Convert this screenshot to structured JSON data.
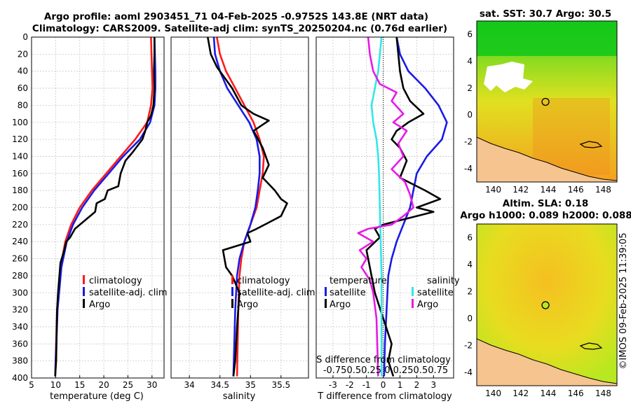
{
  "title_line1": "Argo profile: aoml 2903451_71 04-Feb-2025 -0.9752S 143.8E (NRT data)",
  "title_line2": "Climatology: CARS2009. Satellite-adj clim: synTS_20250204.nc (0.76d earlier)",
  "sst_title": "sat. SST: 30.7 Argo: 30.5",
  "sla_title1": "Altim. SLA: 0.18",
  "sla_title2": "Argo h1000: 0.089 h2000: 0.088",
  "side_label": "©IMOS 09-Feb-2025 11:39:05",
  "legends": {
    "climatology": "climatology",
    "satellite_adj": "satellite-adj. clim",
    "argo": "Argo",
    "temperature_hdr": "temperature",
    "salinity_hdr": "salinity",
    "satellite": "satellite",
    "s_diff_title": "S difference from climatology",
    "s_diff_ticks": "-0.750.50.25  0  0.250.50.75"
  },
  "colors": {
    "climatology": "#ff1a1a",
    "satellite": "#1a1ae6",
    "argo": "#000000",
    "sat_salinity": "#33e6e6",
    "argo_salinity": "#e61ae6",
    "land": "#f5c48f"
  },
  "chart_data": [
    {
      "type": "line",
      "name": "temperature",
      "xlabel": "temperature (deg C)",
      "ylabel": "",
      "xlim": [
        5,
        32.5
      ],
      "ylim": [
        400,
        0
      ],
      "xticks": [
        5,
        10,
        15,
        20,
        25,
        30
      ],
      "yticks": [
        0,
        20,
        40,
        60,
        80,
        100,
        120,
        140,
        160,
        180,
        200,
        220,
        240,
        260,
        280,
        300,
        320,
        340,
        360,
        380,
        400
      ],
      "series": [
        {
          "name": "climatology",
          "color": "#ff1a1a",
          "x": [
            29.8,
            29.9,
            30.0,
            30.1,
            29.8,
            29.0,
            26.5,
            23.5,
            20.5,
            17.5,
            15.0,
            13.2,
            12.0,
            11.0,
            10.3,
            9.9
          ],
          "y": [
            0,
            20,
            40,
            60,
            80,
            100,
            120,
            140,
            160,
            180,
            200,
            220,
            240,
            270,
            320,
            398
          ]
        },
        {
          "name": "satellite-adj. clim",
          "color": "#1a1ae6",
          "x": [
            30.5,
            30.6,
            30.7,
            30.7,
            30.5,
            29.6,
            27.5,
            24.0,
            21.0,
            18.0,
            15.5,
            13.6,
            12.3,
            11.2,
            10.4,
            9.9
          ],
          "y": [
            0,
            20,
            40,
            60,
            80,
            100,
            120,
            140,
            160,
            180,
            200,
            220,
            240,
            270,
            320,
            398
          ]
        },
        {
          "name": "Argo",
          "color": "#000000",
          "x": [
            30.5,
            30.5,
            30.4,
            30.5,
            30.3,
            29.8,
            29.0,
            28.6,
            28.0,
            26.0,
            24.5,
            23.5,
            23.0,
            20.8,
            20.2,
            18.5,
            18.2,
            14.0,
            13.0,
            12.2,
            11.8,
            11.0,
            10.5,
            10.3,
            10.2,
            10.1,
            9.9
          ],
          "y": [
            0,
            20,
            40,
            60,
            80,
            92,
            100,
            110,
            120,
            135,
            145,
            160,
            175,
            180,
            190,
            195,
            205,
            225,
            235,
            240,
            250,
            265,
            300,
            320,
            350,
            380,
            398
          ]
        }
      ],
      "legend": "bottom-right"
    },
    {
      "type": "line",
      "name": "salinity",
      "xlabel": "salinity",
      "ylabel": "",
      "xlim": [
        33.7,
        35.95
      ],
      "ylim": [
        400,
        0
      ],
      "xticks": [
        34,
        34.5,
        35,
        35.5
      ],
      "series": [
        {
          "name": "climatology",
          "color": "#ff1a1a",
          "x": [
            34.45,
            34.5,
            34.6,
            34.75,
            34.9,
            35.05,
            35.15,
            35.22,
            35.2,
            35.15,
            35.1,
            35.0,
            34.9,
            34.85,
            34.82,
            34.8,
            34.78
          ],
          "y": [
            0,
            20,
            40,
            60,
            80,
            100,
            120,
            140,
            160,
            180,
            200,
            220,
            240,
            260,
            280,
            320,
            398
          ]
        },
        {
          "name": "satellite-adj. clim",
          "color": "#1a1ae6",
          "x": [
            34.4,
            34.42,
            34.5,
            34.62,
            34.8,
            34.98,
            35.1,
            35.15,
            35.15,
            35.12,
            35.08,
            35.0,
            34.9,
            34.82,
            34.78,
            34.75,
            34.72
          ],
          "y": [
            0,
            20,
            40,
            60,
            80,
            100,
            120,
            140,
            160,
            180,
            200,
            220,
            240,
            260,
            280,
            320,
            398
          ]
        },
        {
          "name": "Argo",
          "color": "#000000",
          "x": [
            34.3,
            34.35,
            34.45,
            34.7,
            34.85,
            35.05,
            35.3,
            35.05,
            35.2,
            35.3,
            35.2,
            35.4,
            35.5,
            35.6,
            35.5,
            35.1,
            34.95,
            35.0,
            34.55,
            34.6,
            34.7,
            34.82,
            34.78,
            34.75,
            34.72
          ],
          "y": [
            0,
            20,
            35,
            60,
            80,
            90,
            98,
            110,
            130,
            150,
            165,
            180,
            190,
            195,
            210,
            225,
            230,
            240,
            250,
            270,
            280,
            300,
            340,
            380,
            398
          ]
        }
      ],
      "legend": "bottom-right"
    },
    {
      "type": "line",
      "name": "difference",
      "xlabel": "T difference from climatology",
      "ylabel": "",
      "xlim": [
        -4,
        4.2
      ],
      "ylim": [
        400,
        0
      ],
      "xticks": [
        -3,
        -2,
        -1,
        0,
        1,
        2,
        3
      ],
      "secondary_xlabel": "S difference from climatology",
      "secondary_xticks": [
        -0.75,
        -0.5,
        -0.25,
        0,
        0.25,
        0.5,
        0.75
      ],
      "series": [
        {
          "name": "temperature satellite",
          "color": "#1a1ae6",
          "x": [
            0.8,
            1.0,
            1.5,
            2.5,
            3.3,
            3.8,
            3.5,
            2.6,
            2.0,
            1.8,
            1.6,
            1.2,
            0.8,
            0.5,
            0.3,
            0.2,
            0.1,
            0.05
          ],
          "y": [
            0,
            20,
            40,
            60,
            80,
            100,
            120,
            140,
            160,
            180,
            200,
            220,
            240,
            260,
            280,
            320,
            360,
            398
          ]
        },
        {
          "name": "temperature Argo",
          "color": "#000000",
          "x": [
            0.8,
            0.9,
            1.0,
            1.2,
            1.6,
            2.4,
            1.5,
            0.8,
            0.5,
            1.0,
            1.4,
            1.0,
            2.5,
            3.4,
            2.0,
            3.0,
            1.0,
            0.0,
            -0.5,
            -0.2,
            -1.0,
            -0.8,
            -0.5,
            0.0,
            0.5,
            0.3,
            0.6
          ],
          "y": [
            0,
            20,
            40,
            60,
            75,
            90,
            100,
            110,
            120,
            130,
            145,
            165,
            180,
            190,
            200,
            205,
            215,
            220,
            225,
            235,
            250,
            270,
            300,
            330,
            360,
            380,
            398
          ]
        },
        {
          "name": "salinity satellite",
          "color": "#33e6e6",
          "x": [
            -0.1,
            -0.2,
            -0.3,
            -0.5,
            -0.7,
            -0.6,
            -0.4,
            -0.3,
            -0.25,
            -0.2,
            -0.15,
            -0.1,
            -0.1,
            -0.1,
            -0.1
          ],
          "y": [
            0,
            20,
            40,
            60,
            80,
            100,
            120,
            140,
            160,
            200,
            240,
            280,
            320,
            360,
            398
          ]
        },
        {
          "name": "salinity Argo",
          "color": "#e61ae6",
          "x": [
            -0.9,
            -0.8,
            -0.6,
            -0.2,
            0.8,
            0.5,
            1.2,
            0.6,
            1.4,
            0.9,
            1.2,
            0.5,
            1.3,
            1.6,
            1.8,
            1.2,
            0.5,
            -0.9,
            -1.5,
            -0.6,
            -1.4,
            -1.0,
            -1.3,
            -0.8,
            -0.6,
            -0.4,
            -0.3
          ],
          "y": [
            0,
            20,
            40,
            55,
            65,
            75,
            90,
            100,
            110,
            125,
            140,
            155,
            170,
            185,
            200,
            210,
            220,
            225,
            230,
            240,
            250,
            260,
            270,
            285,
            300,
            330,
            398
          ]
        }
      ],
      "legend": "bottom"
    },
    {
      "type": "heatmap",
      "name": "sat_sst_map",
      "title": "sat. SST: 30.7 Argo: 30.5",
      "xlim": [
        138.8,
        149.0
      ],
      "ylim": [
        -5,
        7
      ],
      "xticks": [
        140,
        142,
        144,
        146,
        148
      ],
      "yticks": [
        -4,
        -2,
        0,
        2,
        4,
        6
      ],
      "marker": {
        "lon": 143.8,
        "lat": 0.9752
      }
    },
    {
      "type": "heatmap",
      "name": "altim_sla_map",
      "title": "Altim. SLA: 0.18",
      "xlim": [
        138.8,
        149.0
      ],
      "ylim": [
        -5,
        7
      ],
      "xticks": [
        140,
        142,
        144,
        146,
        148
      ],
      "yticks": [
        -4,
        -2,
        0,
        2,
        4,
        6
      ],
      "marker": {
        "lon": 143.8,
        "lat": 0.9752
      }
    }
  ]
}
